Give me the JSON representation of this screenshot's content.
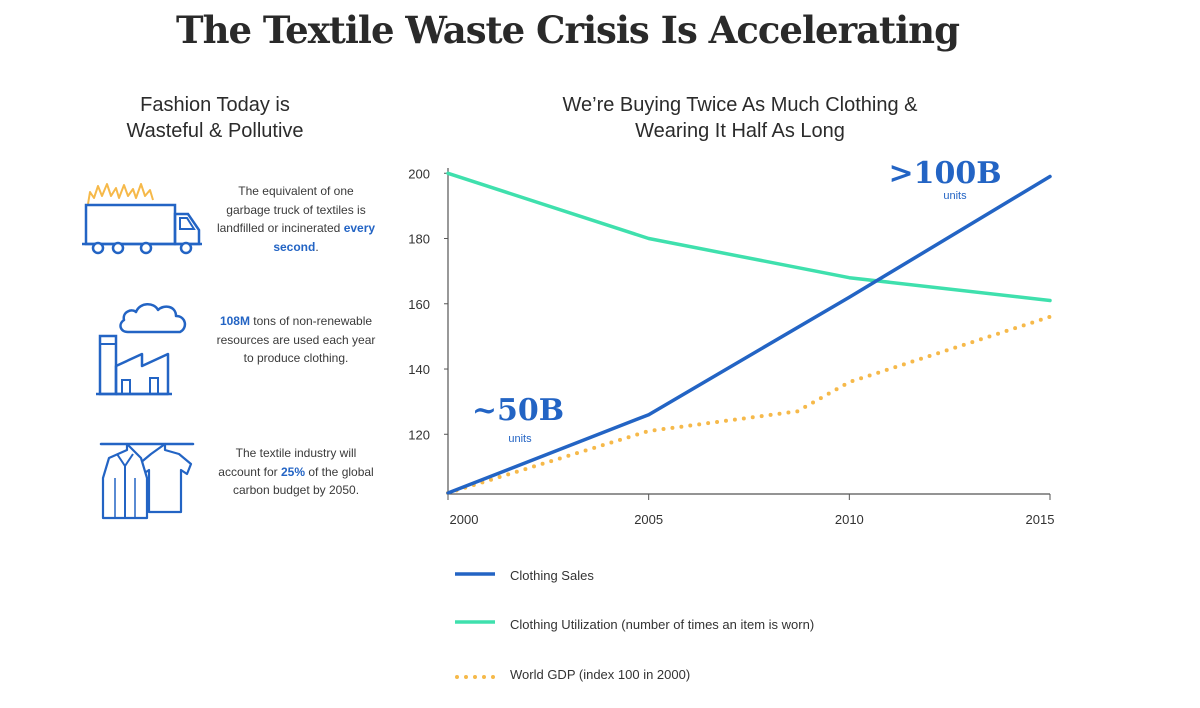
{
  "title": "The Textile Waste Crisis Is Accelerating",
  "left_panel": {
    "title_line1": "Fashion Today is",
    "title_line2": "Wasteful & Pollutive",
    "facts": [
      {
        "icon": "garbage-truck-fire-icon",
        "pre": "The equivalent of one garbage truck of textiles is landfilled or incinerated ",
        "highlight": "every second",
        "post": "."
      },
      {
        "icon": "factory-smoke-icon",
        "pre": "",
        "highlight": "108M",
        "post": " tons of non-renewable resources are used each year to produce clothing."
      },
      {
        "icon": "clothes-hanger-icon",
        "pre": "The textile industry will account for ",
        "highlight": "25%",
        "post": " of the global carbon budget by 2050."
      }
    ]
  },
  "chart_title_line1": "We’re Buying Twice As Much Clothing &",
  "chart_title_line2": "Wearing It Half As Long",
  "chart_data": {
    "type": "line",
    "title": "We’re Buying Twice As Much Clothing & Wearing It Half As Long",
    "x": [
      2000,
      2005,
      2010,
      2015
    ],
    "xlim": [
      2000,
      2015
    ],
    "ylim": [
      102,
      201
    ],
    "y_ticks": [
      120,
      140,
      160,
      180,
      200
    ],
    "grid": false,
    "legend_position": "bottom",
    "series": [
      {
        "name": "Clothing Sales",
        "color": "#2364c4",
        "style": "solid",
        "points": [
          [
            2000,
            102
          ],
          [
            2005,
            126
          ],
          [
            2010,
            162
          ],
          [
            2015,
            199
          ]
        ]
      },
      {
        "name": "Clothing Utilization (number of times an item is worn)",
        "color": "#3fe0ad",
        "style": "solid",
        "points": [
          [
            2000,
            200
          ],
          [
            2005,
            180
          ],
          [
            2010,
            168
          ],
          [
            2015,
            161
          ]
        ]
      },
      {
        "name": "World GDP (index 100 in 2000)",
        "color": "#f6b94a",
        "style": "dotted",
        "points": [
          [
            2000,
            102
          ],
          [
            2005,
            121
          ],
          [
            2008.7,
            127
          ],
          [
            2010,
            136
          ],
          [
            2015,
            156
          ]
        ]
      }
    ],
    "annotations": [
      {
        "text": "~50B",
        "sub": "units"
      },
      {
        "text": ">100B",
        "sub": "units"
      }
    ]
  },
  "colors": {
    "accent_blue": "#2364c4",
    "teal": "#3fe0ad",
    "orange": "#f6b94a",
    "flame": "#f6b94a"
  }
}
